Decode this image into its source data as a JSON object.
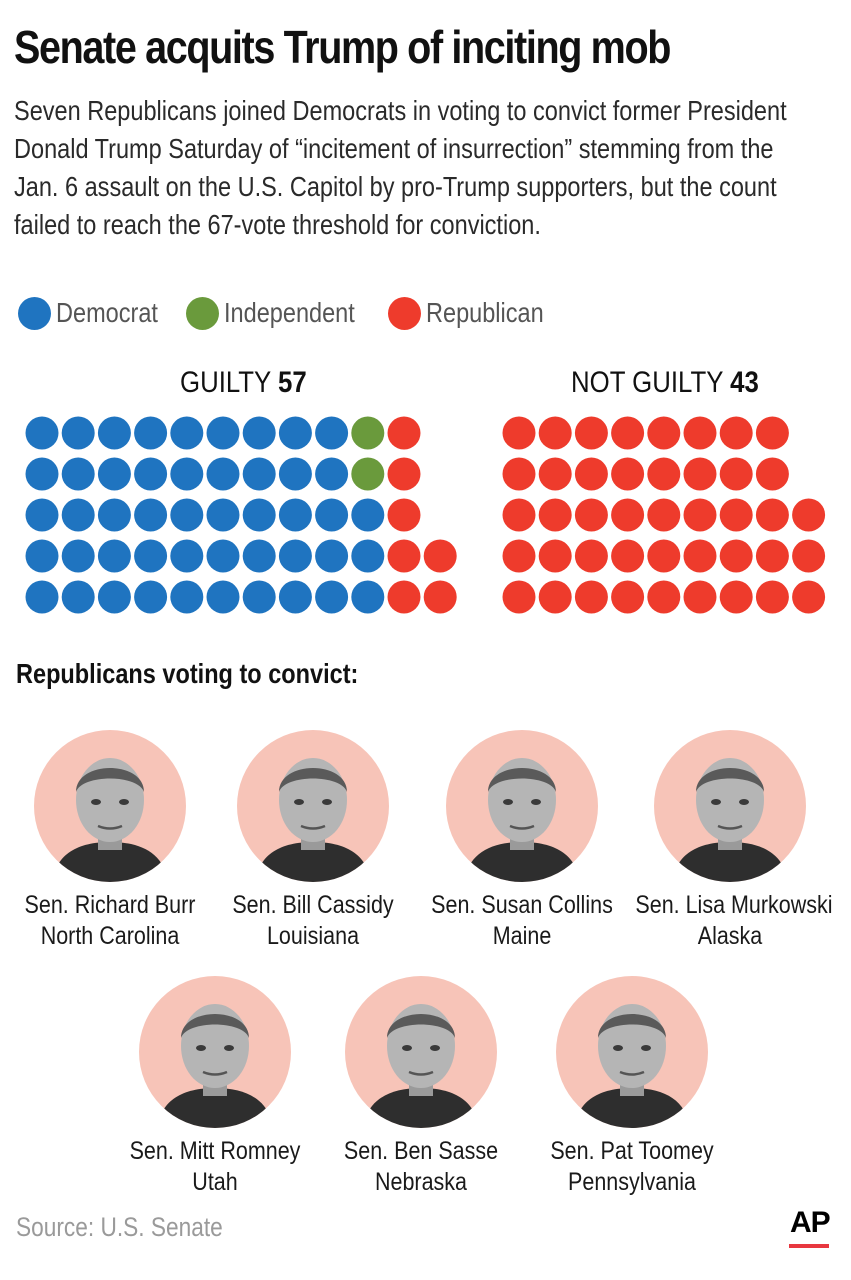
{
  "headline": "Senate acquits Trump of inciting mob",
  "intro_lines": [
    "Seven Republicans joined Democrats in voting to convict former President",
    "Donald Trump Saturday of “incitement of insurrection” stemming from the",
    "Jan. 6 assault on the U.S. Capitol by pro-Trump supporters, but the count",
    "failed to reach the 67-vote threshold for conviction."
  ],
  "colors": {
    "democrat": "#1f74c0",
    "independent": "#6a9a3c",
    "republican": "#ee3b2c",
    "portrait_bg": "#f7c4b8"
  },
  "legend": [
    {
      "label": "Democrat",
      "color_key": "democrat"
    },
    {
      "label": "Independent",
      "color_key": "independent"
    },
    {
      "label": "Republican",
      "color_key": "republican"
    }
  ],
  "chart_data": {
    "type": "waffle",
    "groups": [
      {
        "label": "GUILTY",
        "total": "57",
        "columns": [
          [
            "democrat",
            "democrat",
            "democrat",
            "democrat",
            "democrat"
          ],
          [
            "democrat",
            "democrat",
            "democrat",
            "democrat",
            "democrat"
          ],
          [
            "democrat",
            "democrat",
            "democrat",
            "democrat",
            "democrat"
          ],
          [
            "democrat",
            "democrat",
            "democrat",
            "democrat",
            "democrat"
          ],
          [
            "democrat",
            "democrat",
            "democrat",
            "democrat",
            "democrat"
          ],
          [
            "democrat",
            "democrat",
            "democrat",
            "democrat",
            "democrat"
          ],
          [
            "democrat",
            "democrat",
            "democrat",
            "democrat",
            "democrat"
          ],
          [
            "democrat",
            "democrat",
            "democrat",
            "democrat",
            "democrat"
          ],
          [
            "democrat",
            "democrat",
            "democrat",
            "democrat",
            "democrat"
          ],
          [
            "independent",
            "independent",
            "democrat",
            "democrat",
            "democrat"
          ],
          [
            "republican",
            "republican",
            "republican",
            "republican",
            "republican"
          ],
          [
            "republican",
            "republican"
          ]
        ]
      },
      {
        "label": "NOT GUILTY",
        "total": "43",
        "columns": [
          [
            "republican",
            "republican",
            "republican",
            "republican",
            "republican"
          ],
          [
            "republican",
            "republican",
            "republican",
            "republican",
            "republican"
          ],
          [
            "republican",
            "republican",
            "republican",
            "republican",
            "republican"
          ],
          [
            "republican",
            "republican",
            "republican",
            "republican",
            "republican"
          ],
          [
            "republican",
            "republican",
            "republican",
            "republican",
            "republican"
          ],
          [
            "republican",
            "republican",
            "republican",
            "republican",
            "republican"
          ],
          [
            "republican",
            "republican",
            "republican",
            "republican",
            "republican"
          ],
          [
            "republican",
            "republican",
            "republican",
            "republican",
            "republican"
          ],
          [
            "republican",
            "republican",
            "republican"
          ]
        ]
      }
    ]
  },
  "section_title": "Republicans voting to convict:",
  "senators": [
    {
      "name": "Sen. Richard Burr",
      "state": "North Carolina"
    },
    {
      "name": "Sen. Bill Cassidy",
      "state": "Louisiana"
    },
    {
      "name": "Sen. Susan Collins",
      "state": "Maine"
    },
    {
      "name": "Sen. Lisa Murkowski",
      "state": "Alaska"
    },
    {
      "name": "Sen. Mitt Romney",
      "state": "Utah"
    },
    {
      "name": "Sen. Ben Sasse",
      "state": "Nebraska"
    },
    {
      "name": "Sen. Pat Toomey",
      "state": "Pennsylvania"
    }
  ],
  "source": "Source: U.S. Senate",
  "logo_text": "AP"
}
